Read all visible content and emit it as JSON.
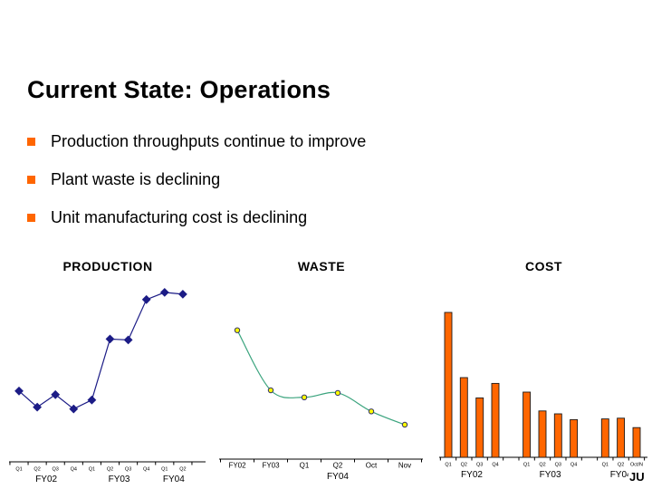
{
  "slide": {
    "title": "Current State: Operations",
    "bullets": [
      {
        "text": "Production throughputs continue to improve"
      },
      {
        "text": "Plant waste is declining"
      },
      {
        "text": "Unit manufacturing cost is declining"
      }
    ],
    "bullet_color": "#FF6600",
    "footer_logo": "JU"
  },
  "chart_data": [
    {
      "type": "line",
      "title": "PRODUCTION",
      "smooth": false,
      "line_color": "#1C1C86",
      "marker": "diamond",
      "marker_color": "#1C1C86",
      "categories": [
        "Q1",
        "Q2",
        "Q3",
        "Q4",
        "Q1",
        "Q2",
        "Q3",
        "Q4",
        "Q1",
        "Q2"
      ],
      "group_labels": [
        {
          "label": "FY02",
          "from": 0,
          "to": 3
        },
        {
          "label": "FY03",
          "from": 4,
          "to": 7
        },
        {
          "label": "FY04",
          "from": 8,
          "to": 9
        }
      ],
      "values": [
        39.5,
        30.5,
        37.5,
        29.5,
        34.5,
        68.5,
        68,
        90.5,
        94.5,
        93.5
      ],
      "xlabel": "",
      "ylabel": "",
      "ylim": [
        0,
        100
      ],
      "y_axis_visible": false,
      "grid": false,
      "note": "relative throughput index; no y-axis shown in source"
    },
    {
      "type": "line",
      "title": "WASTE",
      "smooth": true,
      "line_color": "#3BA47E",
      "marker": "circle",
      "marker_fill": "#FFFF00",
      "marker_stroke": "#333366",
      "categories": [
        "FY02",
        "FY03",
        "Q1",
        "Q2",
        "Oct",
        "Nov"
      ],
      "group_labels": [
        {
          "label": "FY04",
          "from": 2,
          "to": 4
        }
      ],
      "values": [
        73,
        39,
        35,
        37.5,
        27,
        19.5
      ],
      "xlabel": "",
      "ylabel": "",
      "ylim": [
        0,
        100
      ],
      "y_axis_visible": false,
      "grid": false,
      "note": "relative waste index; no y-axis shown in source"
    },
    {
      "type": "bar",
      "title": "COST",
      "bar_fill": "#FF6600",
      "bar_stroke": "#1A1A1A",
      "categories": [
        "Q1",
        "Q2",
        "Q3",
        "Q4",
        "Q1",
        "Q2",
        "Q3",
        "Q4",
        "Q1",
        "Q2",
        "Oct/N"
      ],
      "group_labels": [
        {
          "label": "FY02",
          "from": 0,
          "to": 3
        },
        {
          "label": "FY03",
          "from": 4,
          "to": 7
        },
        {
          "label": "FY04",
          "from": 8,
          "to": 10
        }
      ],
      "values": [
        100,
        55,
        41,
        51,
        45,
        32,
        30,
        26,
        26.5,
        27,
        20.5
      ],
      "xlabel": "",
      "ylabel": "",
      "ylim": [
        0,
        100
      ],
      "y_axis_visible": false,
      "grid": false,
      "note": "relative unit cost index; no y-axis shown in source"
    }
  ]
}
